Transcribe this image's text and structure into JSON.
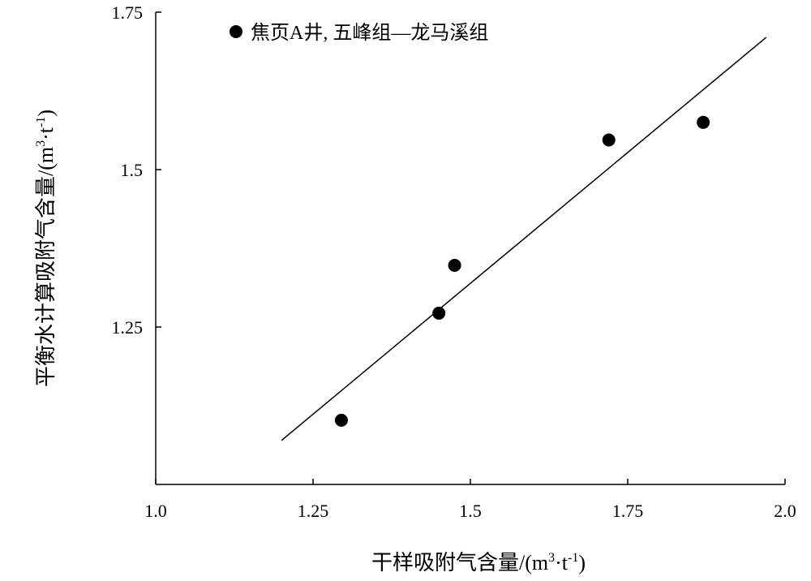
{
  "chart_data": {
    "type": "scatter",
    "xlabel_main": "干样吸附气含量/(m",
    "xlabel_sup": "3",
    "xlabel_mid": "·t",
    "xlabel_sup2": "-1",
    "xlabel_end": ")",
    "ylabel_main": "平衡水计算吸附气含量/(m",
    "ylabel_sup": "3",
    "ylabel_mid": "·t",
    "ylabel_sup2": "-1",
    "ylabel_end": ")",
    "xlim": [
      1.0,
      2.0
    ],
    "ylim": [
      1.0,
      1.75
    ],
    "xticks": [
      1.0,
      1.25,
      1.5,
      1.75,
      2.0
    ],
    "xtick_labels": [
      "1.0",
      "1.25",
      "1.5",
      "1.75",
      "2.0"
    ],
    "yticks": [
      1.25,
      1.5,
      1.75
    ],
    "ytick_labels": [
      "1.25",
      "1.5",
      "1.75"
    ],
    "legend": {
      "label": "焦页A井, 五峰组—龙马溪组",
      "position": "top-left"
    },
    "series": [
      {
        "name": "焦页A井, 五峰组—龙马溪组",
        "marker": "circle",
        "color": "#000000",
        "points": [
          {
            "x": 1.295,
            "y": 1.102
          },
          {
            "x": 1.45,
            "y": 1.272
          },
          {
            "x": 1.475,
            "y": 1.348
          },
          {
            "x": 1.72,
            "y": 1.547
          },
          {
            "x": 1.87,
            "y": 1.575
          }
        ]
      }
    ],
    "trendline": {
      "color": "#000000",
      "x": [
        1.2,
        1.97
      ],
      "y": [
        1.07,
        1.71
      ]
    },
    "grid": false
  }
}
